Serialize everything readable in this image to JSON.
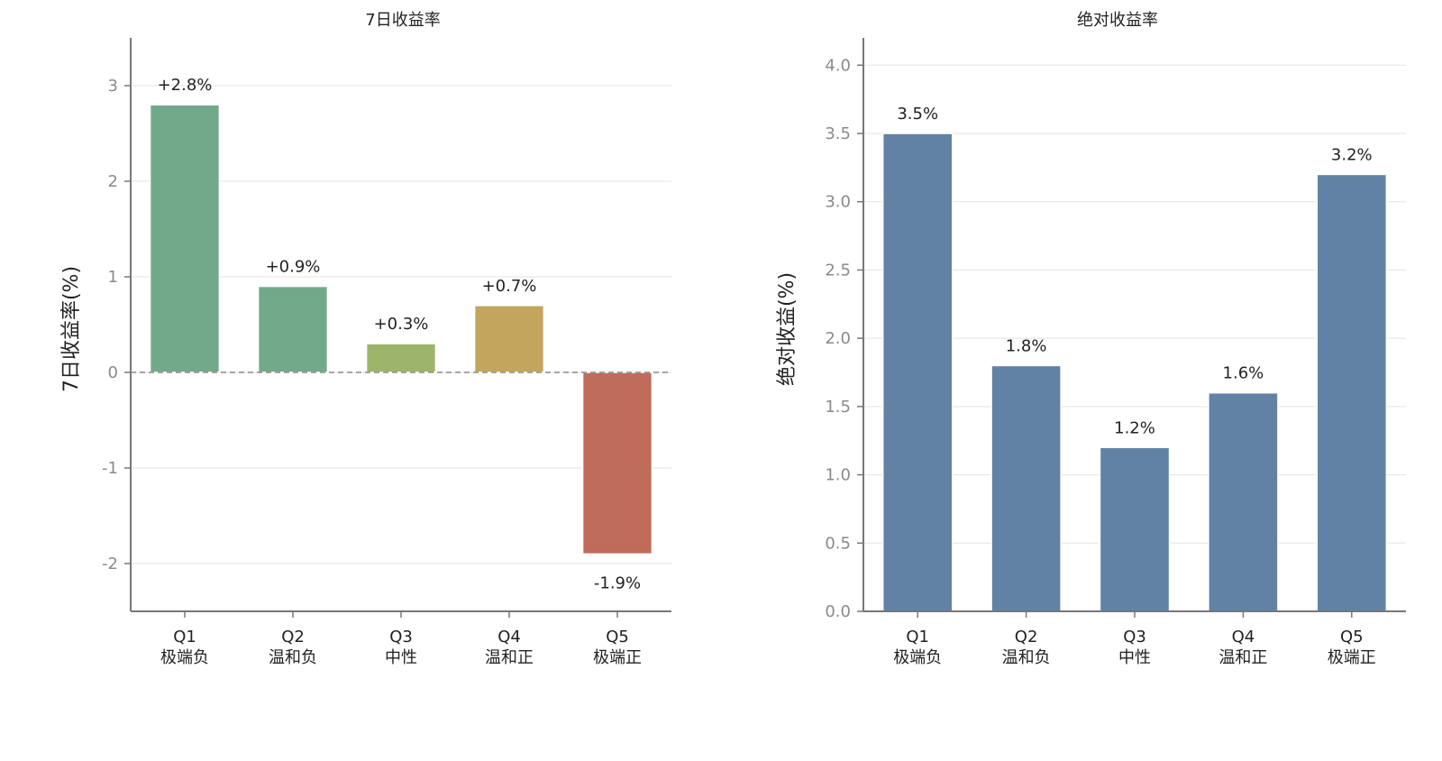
{
  "charts": [
    {
      "title": "7日收益率",
      "ylabel": "7日收益率(%)",
      "ticks": [
        "-2",
        "-1",
        "0",
        "1",
        "2",
        "3"
      ]
    },
    {
      "title": "绝对收益率",
      "ylabel": "绝对收益(%)",
      "ticks": [
        "0.0",
        "0.5",
        "1.0",
        "1.5",
        "2.0",
        "2.5",
        "3.0",
        "3.5",
        "4.0"
      ]
    }
  ],
  "chart_data": [
    {
      "type": "bar",
      "title": "7日收益率",
      "ylabel": "7日收益率(%)",
      "xlabel": "",
      "categories": [
        {
          "code": "Q1",
          "name": "极端负"
        },
        {
          "code": "Q2",
          "name": "温和负"
        },
        {
          "code": "Q3",
          "name": "中性"
        },
        {
          "code": "Q4",
          "name": "温和正"
        },
        {
          "code": "Q5",
          "name": "极端正"
        }
      ],
      "values": [
        2.8,
        0.9,
        0.3,
        0.7,
        -1.9
      ],
      "data_labels": [
        "+2.8%",
        "+0.9%",
        "+0.3%",
        "+0.7%",
        "-1.9%"
      ],
      "colors": [
        "#72a98a",
        "#72a98a",
        "#9db56a",
        "#c4a55e",
        "#bf6c5a"
      ],
      "ylim": [
        -2.5,
        3.5
      ],
      "yticks": [
        -2,
        -1,
        0,
        1,
        2,
        3
      ],
      "grid": true,
      "zero_line": "dashed"
    },
    {
      "type": "bar",
      "title": "绝对收益率",
      "ylabel": "绝对收益(%)",
      "xlabel": "",
      "categories": [
        {
          "code": "Q1",
          "name": "极端负"
        },
        {
          "code": "Q2",
          "name": "温和负"
        },
        {
          "code": "Q3",
          "name": "中性"
        },
        {
          "code": "Q4",
          "name": "温和正"
        },
        {
          "code": "Q5",
          "name": "极端正"
        }
      ],
      "values": [
        3.5,
        1.8,
        1.2,
        1.6,
        3.2
      ],
      "data_labels": [
        "3.5%",
        "1.8%",
        "1.2%",
        "1.6%",
        "3.2%"
      ],
      "colors": [
        "#6182a5",
        "#6182a5",
        "#6182a5",
        "#6182a5",
        "#6182a5"
      ],
      "ylim": [
        0,
        4.2
      ],
      "yticks": [
        0,
        0.5,
        1.0,
        1.5,
        2.0,
        2.5,
        3.0,
        3.5,
        4.0
      ],
      "grid": true
    }
  ]
}
